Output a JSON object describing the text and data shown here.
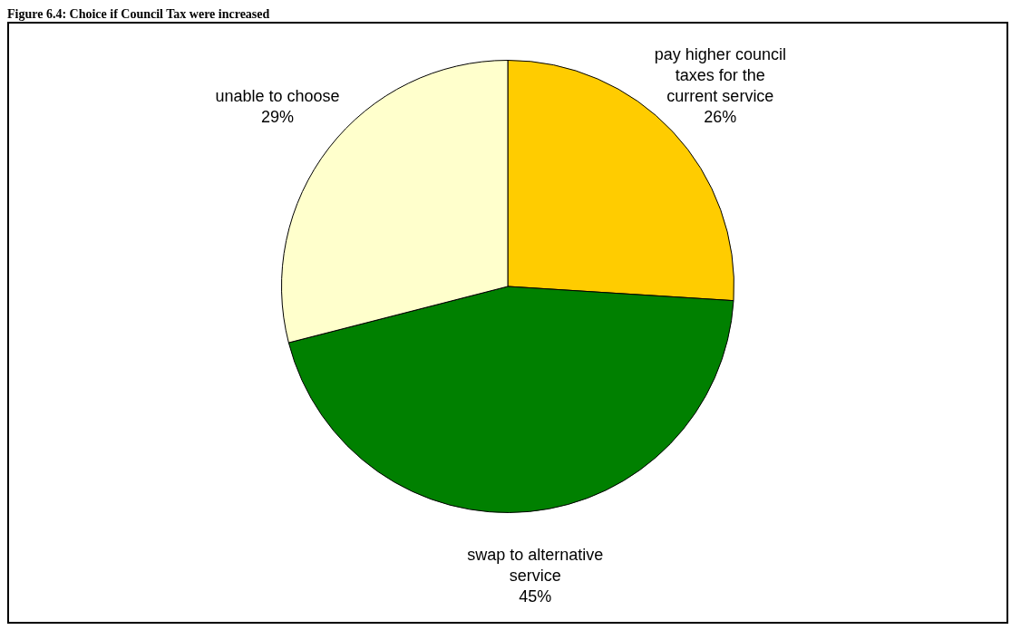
{
  "chart_data": {
    "type": "pie",
    "title": "Figure 6.4: Choice if Council Tax were increased",
    "categories": [
      "pay higher council taxes for the current service",
      "swap to alternative service",
      "unable to choose"
    ],
    "values": [
      26,
      45,
      29
    ],
    "value_labels": [
      "26%",
      "45%",
      "29%"
    ],
    "colors": [
      "#ffcc00",
      "#008000",
      "#ffffcc"
    ],
    "legend": false
  }
}
